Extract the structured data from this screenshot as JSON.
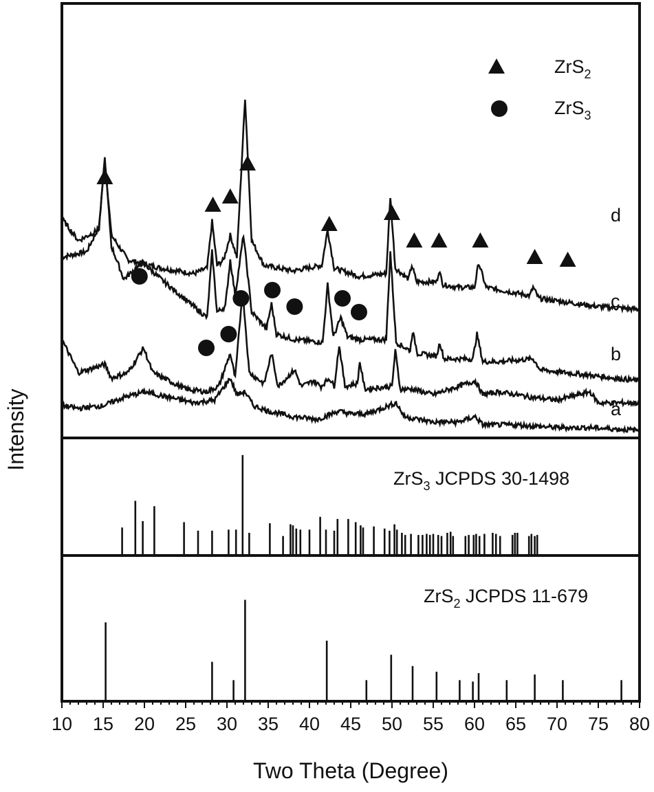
{
  "colors": {
    "ink": "#111111",
    "background": "#ffffff"
  },
  "chart_data": {
    "type": "line",
    "xlabel": "Two Theta (Degree)",
    "ylabel": "Intensity",
    "xlim": [
      10,
      80
    ],
    "x_ticks": [
      10,
      15,
      20,
      25,
      30,
      35,
      40,
      45,
      50,
      55,
      60,
      65,
      70,
      75,
      80
    ],
    "x_tick_labels": [
      "10",
      "15",
      "20",
      "25",
      "30",
      "35",
      "40",
      "45",
      "50",
      "55",
      "60",
      "65",
      "70",
      "75",
      "80"
    ],
    "yticks": "none",
    "legend": [
      {
        "marker": "triangle",
        "label_main": "ZrS",
        "label_sub": "2",
        "label": "ZrS2"
      },
      {
        "marker": "circle",
        "label_main": "ZrS",
        "label_sub": "3",
        "label": "ZrS3"
      }
    ],
    "legend_position": "top-right",
    "series": [
      {
        "name": "d",
        "baseline_level": 0.62,
        "points": [
          [
            10,
            0.64
          ],
          [
            13,
            0.66
          ],
          [
            14.5,
            0.75
          ],
          [
            15.2,
            1.0
          ],
          [
            16,
            0.72
          ],
          [
            18,
            0.63
          ],
          [
            22,
            0.6
          ],
          [
            26,
            0.58
          ],
          [
            27.6,
            0.6
          ],
          [
            28.2,
            0.77
          ],
          [
            28.8,
            0.61
          ],
          [
            29.6,
            0.63
          ],
          [
            30.4,
            0.72
          ],
          [
            31.2,
            0.64
          ],
          [
            32.2,
            1.22
          ],
          [
            33.0,
            0.7
          ],
          [
            34.5,
            0.61
          ],
          [
            38,
            0.59
          ],
          [
            41.5,
            0.61
          ],
          [
            42.2,
            0.74
          ],
          [
            43.0,
            0.6
          ],
          [
            46,
            0.57
          ],
          [
            49.3,
            0.58
          ],
          [
            49.8,
            0.86
          ],
          [
            50.4,
            0.6
          ],
          [
            52.0,
            0.56
          ],
          [
            52.4,
            0.61
          ],
          [
            53.0,
            0.55
          ],
          [
            55.4,
            0.55
          ],
          [
            55.7,
            0.59
          ],
          [
            56.2,
            0.54
          ],
          [
            58,
            0.53
          ],
          [
            60.0,
            0.53
          ],
          [
            60.5,
            0.62
          ],
          [
            61.4,
            0.53
          ],
          [
            66.7,
            0.5
          ],
          [
            67.1,
            0.53
          ],
          [
            67.8,
            0.49
          ],
          [
            75,
            0.46
          ],
          [
            80,
            0.45
          ]
        ]
      },
      {
        "name": "c",
        "baseline_level": 0.38,
        "points": [
          [
            10,
            0.78
          ],
          [
            12,
            0.7
          ],
          [
            14.5,
            0.74
          ],
          [
            15.2,
            1.0
          ],
          [
            16,
            0.68
          ],
          [
            17.5,
            0.56
          ],
          [
            19.8,
            0.62
          ],
          [
            22,
            0.56
          ],
          [
            26,
            0.46
          ],
          [
            27.6,
            0.42
          ],
          [
            28.2,
            0.66
          ],
          [
            28.8,
            0.44
          ],
          [
            29.8,
            0.46
          ],
          [
            30.4,
            0.63
          ],
          [
            31.0,
            0.5
          ],
          [
            32.0,
            0.72
          ],
          [
            33.0,
            0.44
          ],
          [
            34.8,
            0.38
          ],
          [
            35.4,
            0.47
          ],
          [
            36,
            0.36
          ],
          [
            38.2,
            0.34
          ],
          [
            41.6,
            0.33
          ],
          [
            42.2,
            0.54
          ],
          [
            42.9,
            0.35
          ],
          [
            43.8,
            0.42
          ],
          [
            44.6,
            0.35
          ],
          [
            46.2,
            0.34
          ],
          [
            49.3,
            0.34
          ],
          [
            49.8,
            0.66
          ],
          [
            50.5,
            0.33
          ],
          [
            52.2,
            0.3
          ],
          [
            52.5,
            0.37
          ],
          [
            53.1,
            0.29
          ],
          [
            55.4,
            0.28
          ],
          [
            55.8,
            0.33
          ],
          [
            56.3,
            0.27
          ],
          [
            59.8,
            0.27
          ],
          [
            60.3,
            0.36
          ],
          [
            61.0,
            0.26
          ],
          [
            63,
            0.26
          ],
          [
            67.1,
            0.27
          ],
          [
            68,
            0.23
          ],
          [
            80,
            0.19
          ]
        ]
      },
      {
        "name": "b",
        "baseline_level": 0.26,
        "points": [
          [
            10,
            0.34
          ],
          [
            12,
            0.22
          ],
          [
            15.2,
            0.25
          ],
          [
            16,
            0.2
          ],
          [
            18,
            0.22
          ],
          [
            19.9,
            0.31
          ],
          [
            21,
            0.22
          ],
          [
            25,
            0.16
          ],
          [
            27.5,
            0.15
          ],
          [
            29,
            0.17
          ],
          [
            30.4,
            0.29
          ],
          [
            31.0,
            0.2
          ],
          [
            31.9,
            0.52
          ],
          [
            32.7,
            0.22
          ],
          [
            34.5,
            0.18
          ],
          [
            35.4,
            0.29
          ],
          [
            36.2,
            0.17
          ],
          [
            38.2,
            0.23
          ],
          [
            39,
            0.17
          ],
          [
            40.5,
            0.19
          ],
          [
            41.4,
            0.17
          ],
          [
            42.4,
            0.2
          ],
          [
            43.0,
            0.17
          ],
          [
            43.6,
            0.32
          ],
          [
            44.3,
            0.17
          ],
          [
            45.8,
            0.18
          ],
          [
            46.1,
            0.26
          ],
          [
            46.7,
            0.16
          ],
          [
            50.0,
            0.17
          ],
          [
            50.4,
            0.3
          ],
          [
            51.0,
            0.16
          ],
          [
            52.5,
            0.16
          ],
          [
            55,
            0.14
          ],
          [
            60.1,
            0.19
          ],
          [
            61,
            0.14
          ],
          [
            63,
            0.15
          ],
          [
            67,
            0.13
          ],
          [
            70,
            0.12
          ],
          [
            74,
            0.15
          ],
          [
            75,
            0.11
          ],
          [
            80,
            0.11
          ]
        ]
      },
      {
        "name": "a",
        "baseline_level": 0.08,
        "points": [
          [
            10,
            0.1
          ],
          [
            12,
            0.09
          ],
          [
            15,
            0.1
          ],
          [
            17.5,
            0.13
          ],
          [
            20,
            0.15
          ],
          [
            23,
            0.13
          ],
          [
            26,
            0.11
          ],
          [
            28.5,
            0.12
          ],
          [
            30.4,
            0.2
          ],
          [
            31.2,
            0.14
          ],
          [
            32.2,
            0.15
          ],
          [
            33.2,
            0.1
          ],
          [
            35,
            0.08
          ],
          [
            38,
            0.06
          ],
          [
            41,
            0.05
          ],
          [
            43.5,
            0.08
          ],
          [
            45,
            0.07
          ],
          [
            47,
            0.07
          ],
          [
            50.5,
            0.11
          ],
          [
            51.5,
            0.06
          ],
          [
            55,
            0.04
          ],
          [
            58,
            0.04
          ],
          [
            60.1,
            0.06
          ],
          [
            61,
            0.03
          ],
          [
            65,
            0.03
          ],
          [
            70,
            0.02
          ],
          [
            74,
            0.02
          ],
          [
            80,
            0.01
          ]
        ]
      }
    ],
    "peak_markers": {
      "triangle_zrs2": [
        [
          15.2,
          0.93
        ],
        [
          28.3,
          0.83
        ],
        [
          30.4,
          0.86
        ],
        [
          32.5,
          0.98
        ],
        [
          42.4,
          0.76
        ],
        [
          50.0,
          0.8
        ],
        [
          52.7,
          0.7
        ],
        [
          55.7,
          0.7
        ],
        [
          60.7,
          0.7
        ],
        [
          67.3,
          0.64
        ],
        [
          71.3,
          0.63
        ]
      ],
      "circle_zrs3": [
        [
          19.4,
          0.57
        ],
        [
          35.5,
          0.52
        ],
        [
          31.7,
          0.49
        ],
        [
          38.2,
          0.46
        ],
        [
          44.0,
          0.49
        ],
        [
          46.0,
          0.44
        ],
        [
          30.2,
          0.36
        ],
        [
          27.5,
          0.31
        ]
      ]
    },
    "reference_patterns": [
      {
        "title_main": "ZrS",
        "title_sub": "3",
        "title_rest": " JCPDS 30-1498",
        "title": "ZrS3 JCPDS 30-1498",
        "lines": [
          [
            17.3,
            0.25
          ],
          [
            18.9,
            0.5
          ],
          [
            19.8,
            0.31
          ],
          [
            21.2,
            0.45
          ],
          [
            24.8,
            0.3
          ],
          [
            26.5,
            0.22
          ],
          [
            28.2,
            0.22
          ],
          [
            30.2,
            0.23
          ],
          [
            31.1,
            0.23
          ],
          [
            31.9,
            0.93
          ],
          [
            32.7,
            0.2
          ],
          [
            35.2,
            0.29
          ],
          [
            36.8,
            0.17
          ],
          [
            37.7,
            0.28
          ],
          [
            38.0,
            0.27
          ],
          [
            38.4,
            0.24
          ],
          [
            38.9,
            0.23
          ],
          [
            40.0,
            0.23
          ],
          [
            41.3,
            0.35
          ],
          [
            42.0,
            0.23
          ],
          [
            43.0,
            0.22
          ],
          [
            43.4,
            0.33
          ],
          [
            44.7,
            0.33
          ],
          [
            45.6,
            0.3
          ],
          [
            46.2,
            0.27
          ],
          [
            46.5,
            0.25
          ],
          [
            47.8,
            0.26
          ],
          [
            49.1,
            0.24
          ],
          [
            49.7,
            0.22
          ],
          [
            50.3,
            0.28
          ],
          [
            50.6,
            0.23
          ],
          [
            51.2,
            0.2
          ],
          [
            51.6,
            0.18
          ],
          [
            52.3,
            0.19
          ],
          [
            53.2,
            0.18
          ],
          [
            53.7,
            0.18
          ],
          [
            54.2,
            0.19
          ],
          [
            54.6,
            0.18
          ],
          [
            55.0,
            0.19
          ],
          [
            55.6,
            0.18
          ],
          [
            56.0,
            0.17
          ],
          [
            56.7,
            0.2
          ],
          [
            57.1,
            0.21
          ],
          [
            57.4,
            0.17
          ],
          [
            58.9,
            0.17
          ],
          [
            59.3,
            0.18
          ],
          [
            59.9,
            0.18
          ],
          [
            60.2,
            0.19
          ],
          [
            60.6,
            0.17
          ],
          [
            61.2,
            0.19
          ],
          [
            62.2,
            0.2
          ],
          [
            62.6,
            0.19
          ],
          [
            63.1,
            0.17
          ],
          [
            64.6,
            0.18
          ],
          [
            64.9,
            0.2
          ],
          [
            65.2,
            0.2
          ],
          [
            66.6,
            0.17
          ],
          [
            66.9,
            0.19
          ],
          [
            67.3,
            0.17
          ],
          [
            67.6,
            0.18
          ]
        ]
      },
      {
        "title_main": "ZrS",
        "title_sub": "2",
        "title_rest": " JCPDS 11-679",
        "title": "ZrS2 JCPDS 11-679",
        "lines": [
          [
            15.3,
            0.55
          ],
          [
            28.2,
            0.27
          ],
          [
            30.8,
            0.14
          ],
          [
            32.2,
            0.71
          ],
          [
            42.1,
            0.42
          ],
          [
            46.9,
            0.14
          ],
          [
            49.9,
            0.32
          ],
          [
            52.5,
            0.24
          ],
          [
            55.4,
            0.2
          ],
          [
            58.2,
            0.14
          ],
          [
            59.8,
            0.13
          ],
          [
            60.5,
            0.19
          ],
          [
            63.9,
            0.14
          ],
          [
            67.3,
            0.18
          ],
          [
            70.7,
            0.14
          ],
          [
            77.8,
            0.14
          ]
        ]
      }
    ]
  }
}
